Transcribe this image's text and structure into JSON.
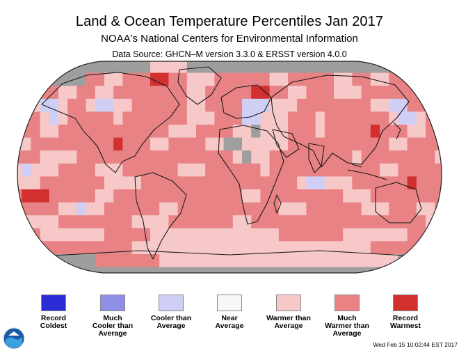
{
  "header": {
    "title": "Land & Ocean Temperature Percentiles Jan 2017",
    "subtitle": "NOAA's National Centers for Environmental Information",
    "source": "Data Source: GHCN–M version 3.3.0 & ERSST version 4.0.0"
  },
  "map": {
    "projection": "Robinson",
    "no_data_color": "#9e9e9e"
  },
  "legend": [
    {
      "label": "Record\nColdest",
      "color": "#2b2bd6"
    },
    {
      "label": "Much\nCooler than\nAverage",
      "color": "#8f8fe8"
    },
    {
      "label": "Cooler than\nAverage",
      "color": "#cfcff5"
    },
    {
      "label": "Near\nAverage",
      "color": "#f7f7f7"
    },
    {
      "label": "Warmer than\nAverage",
      "color": "#f6c8c8"
    },
    {
      "label": "Much\nWarmer than\nAverage",
      "color": "#e88284"
    },
    {
      "label": "Record\nWarmest",
      "color": "#d22f2f"
    }
  ],
  "footer": {
    "timestamp": "Wed Feb 15 10:02:44 EST 2017",
    "logo_icon": "noaa-logo"
  }
}
